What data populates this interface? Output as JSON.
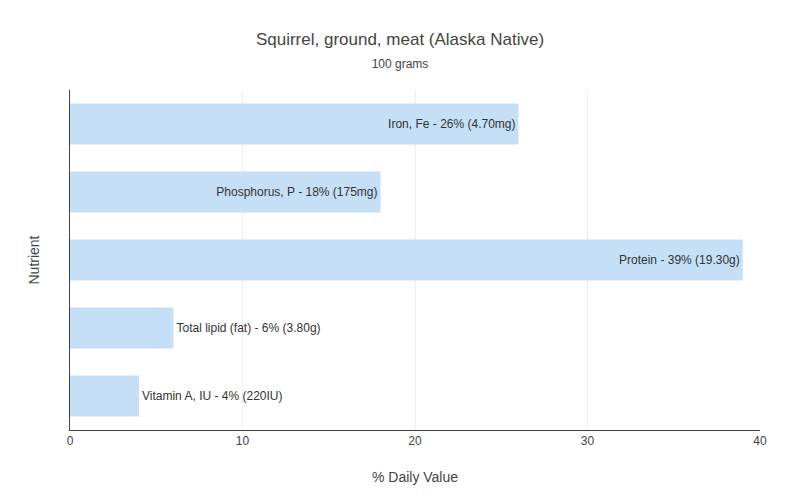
{
  "chart_data": {
    "type": "bar",
    "orientation": "horizontal",
    "title": "Squirrel, ground, meat (Alaska Native)",
    "subtitle": "100 grams",
    "x_label": "% Daily Value",
    "y_label": "Nutrient",
    "categories": [
      "Vitamin A, IU - 4% (220IU)",
      "Total lipid (fat) - 6% (3.80g)",
      "Protein - 39% (19.30g)",
      "Phosphorus, P - 18% (175mg)",
      "Iron, Fe - 26% (4.70mg)"
    ],
    "values": [
      4,
      6,
      39,
      18,
      26
    ],
    "color": "#c5dff7",
    "xlim": [
      0,
      40
    ],
    "xticks": [
      0,
      10,
      20,
      30,
      40
    ],
    "grid": true,
    "tick_labels": "x"
  }
}
